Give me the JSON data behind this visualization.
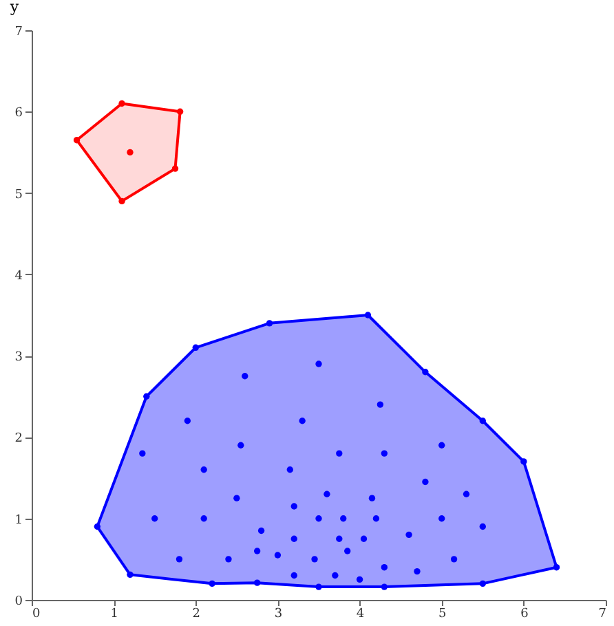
{
  "chart_data": {
    "type": "scatter",
    "ylabel": "y",
    "xlim": [
      0,
      7
    ],
    "ylim": [
      0,
      7
    ],
    "xticks": [
      0,
      1,
      2,
      3,
      4,
      5,
      6,
      7
    ],
    "yticks": [
      0,
      1,
      2,
      3,
      4,
      5,
      6,
      7
    ],
    "grid": false,
    "series": [
      {
        "type": "area",
        "color": "#ff0000",
        "x": [
          0.55,
          1.1,
          1.81,
          1.75,
          1.1
        ],
        "values": [
          5.65,
          6.1,
          6.0,
          5.3,
          4.9
        ]
      },
      {
        "type": "area",
        "color": "#0000ff",
        "x": [
          0.8,
          1.4,
          2.0,
          2.9,
          4.1,
          4.8,
          5.5,
          6.0,
          6.4,
          5.5,
          4.3,
          3.5,
          2.75,
          2.2,
          1.2
        ],
        "values": [
          0.9,
          2.5,
          3.1,
          3.4,
          3.5,
          2.8,
          2.2,
          1.7,
          0.4,
          0.2,
          0.16,
          0.16,
          0.21,
          0.2,
          0.31
        ]
      },
      {
        "type": "scatter",
        "marker": "circle",
        "color": "#ff0000",
        "x": [
          0.55,
          1.1,
          1.81,
          1.75,
          1.1,
          1.2
        ],
        "values": [
          5.65,
          6.1,
          6.0,
          5.3,
          4.9,
          5.5
        ]
      },
      {
        "type": "scatter",
        "marker": "circle",
        "color": "#0000ff",
        "x": [
          0.8,
          1.4,
          2.0,
          2.9,
          4.1,
          4.8,
          5.5,
          6.0,
          6.4,
          5.5,
          4.3,
          3.5,
          2.75,
          2.2,
          1.2,
          3.5,
          2.6,
          1.9,
          3.3,
          2.55,
          1.35,
          3.75,
          2.1,
          3.15,
          2.5,
          3.6,
          3.2,
          1.5,
          2.1,
          3.5,
          3.8,
          2.8,
          3.2,
          3.75,
          2.75,
          3.0,
          3.85,
          1.8,
          2.4,
          3.45,
          3.2,
          3.7,
          4.25,
          5.0,
          4.3,
          4.8,
          4.15,
          5.3,
          4.2,
          5.0,
          5.5,
          4.05,
          4.6,
          5.15,
          4.3,
          4.7,
          4.0
        ],
        "values": [
          0.9,
          2.5,
          3.1,
          3.4,
          3.5,
          2.8,
          2.2,
          1.7,
          0.4,
          0.2,
          0.16,
          0.16,
          0.21,
          0.2,
          0.31,
          2.9,
          2.75,
          2.2,
          2.2,
          1.9,
          1.8,
          1.8,
          1.6,
          1.6,
          1.25,
          1.3,
          1.15,
          1.0,
          1.0,
          1.0,
          1.0,
          0.85,
          0.75,
          0.75,
          0.6,
          0.55,
          0.6,
          0.5,
          0.5,
          0.5,
          0.3,
          0.3,
          2.4,
          1.9,
          1.8,
          1.45,
          1.25,
          1.3,
          1.0,
          1.0,
          0.9,
          0.75,
          0.8,
          0.5,
          0.4,
          0.35,
          0.25
        ]
      }
    ]
  }
}
